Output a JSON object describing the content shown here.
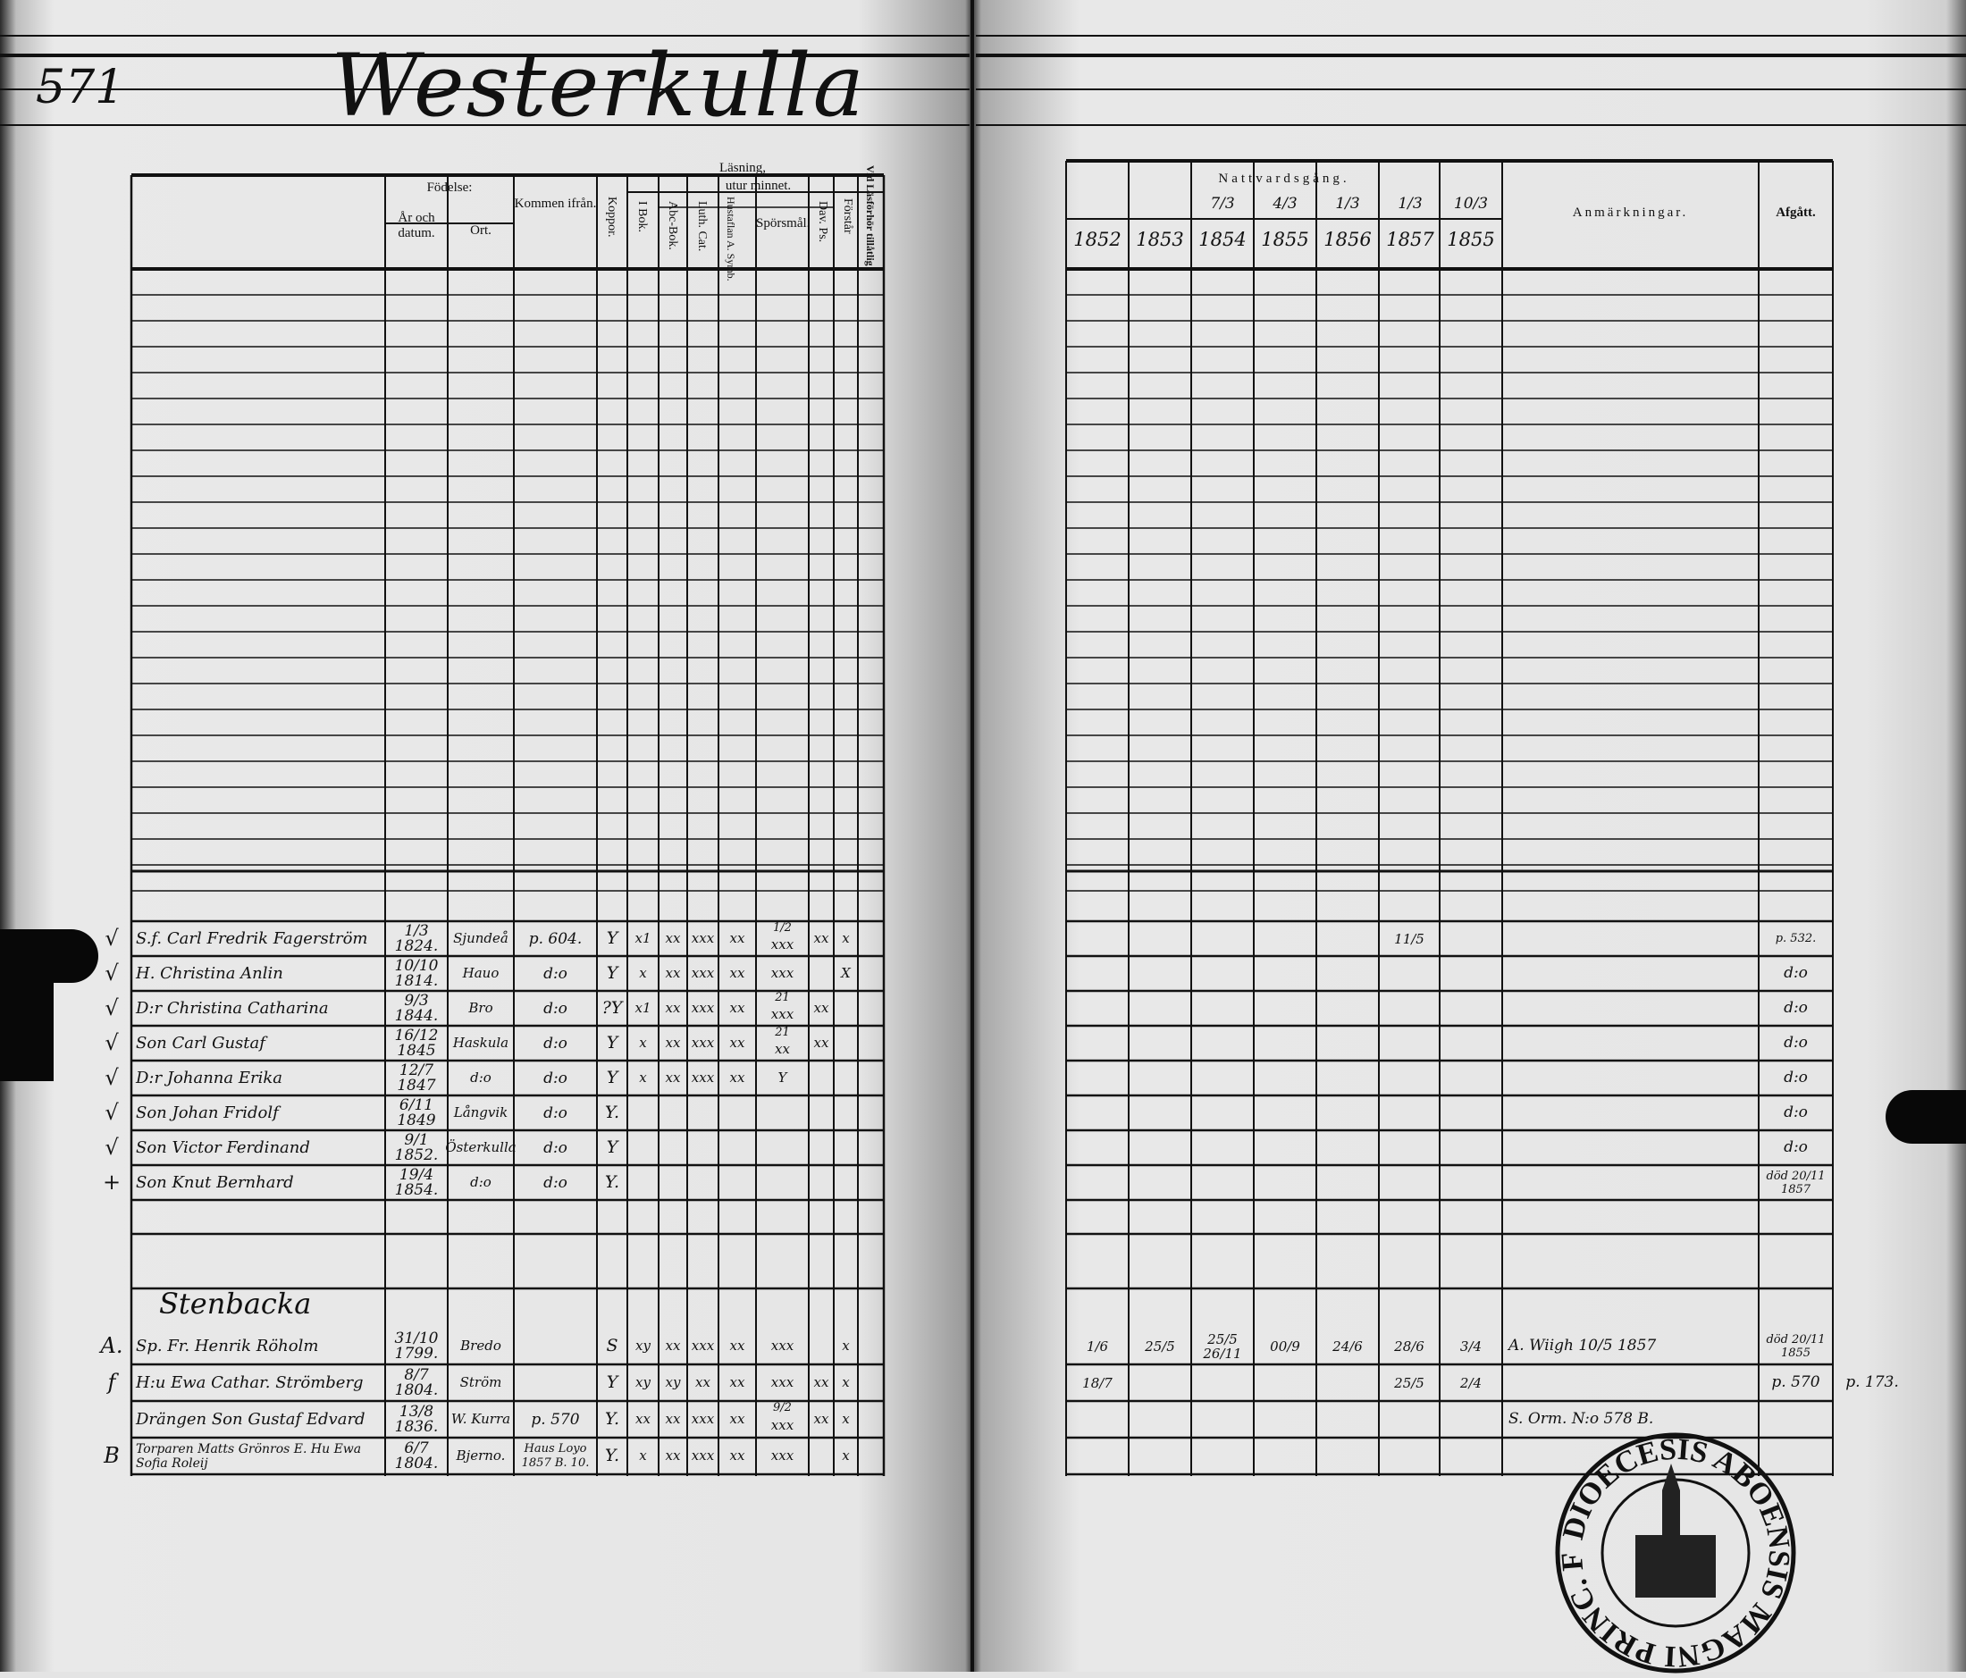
{
  "page": {
    "page_number": "571",
    "village_title": "Westerkulla",
    "section_title": "Stenbacka"
  },
  "left_header": {
    "fodelse": "Födelse:",
    "ar_och_datum": "År och datum.",
    "ort": "Ort.",
    "kommen_ifran": "Kommen ifrån.",
    "kopper": "Koppor.",
    "lasning": "Läsning,",
    "utur_minnet": "utur minnet.",
    "i_bok": "I Bok.",
    "abc_bok": "Abc-Bok.",
    "luth_cat": "Luth. Cat.",
    "hustafla_symb": "Hustaflan A. Symb.",
    "sporsmal": "Spörsmål.",
    "dav_ps": "Dav. Ps.",
    "forstar": "Förstår",
    "vid_lasforhor": "Vid Läsförhör tillåtlig"
  },
  "right_header": {
    "nattvardsgang": "Nattvardsgång.",
    "sub_dates": [
      "",
      "",
      "7/3",
      "4/3",
      "1/3",
      "1/3",
      "10/3"
    ],
    "years": [
      "1852",
      "1853",
      "1854",
      "1855",
      "1856",
      "1857",
      "1855"
    ],
    "anmarkningar": "Anmärkningar.",
    "afgatt": "Afgått."
  },
  "households": [
    {
      "members": [
        {
          "mark": "√",
          "name": "S.f. Carl Fredrik Fagerström",
          "born": "1/3 1824.",
          "place": "Sjundeå",
          "from": "p. 604.",
          "kopper": "Y",
          "reading": [
            "x1",
            "xx",
            "xxx",
            "xx",
            "xxx",
            "xx",
            "x"
          ],
          "note_above": "1/2",
          "communion": [
            "",
            "",
            "",
            "",
            "",
            "11/5",
            ""
          ],
          "remark": "",
          "afgatt": "p. 532."
        },
        {
          "mark": "√",
          "name": "H. Christina Anlin",
          "born": "10/10 1814.",
          "place": "Hauo",
          "from": "d:o",
          "kopper": "Y",
          "reading": [
            "x",
            "xx",
            "xxx",
            "xx",
            "xxx",
            "",
            "X"
          ],
          "note_above": "",
          "communion": [
            "",
            "",
            "",
            "",
            "",
            "",
            ""
          ],
          "remark": "",
          "afgatt": "d:o"
        },
        {
          "mark": "√",
          "name": "D:r Christina Catharina",
          "born": "9/3 1844.",
          "place": "Bro",
          "from": "d:o",
          "kopper": "?Y",
          "reading": [
            "x1",
            "xx",
            "xxx",
            "xx",
            "xxx",
            "xx",
            ""
          ],
          "note_above": "21",
          "communion": [
            "",
            "",
            "",
            "",
            "",
            "",
            ""
          ],
          "remark": "",
          "afgatt": "d:o"
        },
        {
          "mark": "√",
          "name": "Son Carl Gustaf",
          "born": "16/12 1845",
          "place": "Haskula",
          "from": "d:o",
          "kopper": "Y",
          "reading": [
            "x",
            "xx",
            "xxx",
            "xx",
            "xx",
            "xx",
            ""
          ],
          "note_above": "21",
          "communion": [
            "",
            "",
            "",
            "",
            "",
            "",
            ""
          ],
          "remark": "",
          "afgatt": "d:o"
        },
        {
          "mark": "√",
          "name": "D:r Johanna Erika",
          "born": "12/7 1847",
          "place": "d:o",
          "from": "d:o",
          "kopper": "Y",
          "reading": [
            "x",
            "xx",
            "xxx",
            "xx",
            "Y",
            "",
            ""
          ],
          "note_above": "",
          "communion": [
            "",
            "",
            "",
            "",
            "",
            "",
            ""
          ],
          "remark": "",
          "afgatt": "d:o"
        },
        {
          "mark": "√",
          "name": "Son Johan Fridolf",
          "born": "6/11 1849",
          "place": "Långvik",
          "from": "d:o",
          "kopper": "Y.",
          "reading": [
            "",
            "",
            "",
            "",
            "",
            "",
            ""
          ],
          "note_above": "",
          "communion": [
            "",
            "",
            "",
            "",
            "",
            "",
            ""
          ],
          "remark": "",
          "afgatt": "d:o"
        },
        {
          "mark": "√",
          "name": "Son Victor Ferdinand",
          "born": "9/1 1852.",
          "place": "Österkulla",
          "from": "d:o",
          "kopper": "Y",
          "reading": [
            "",
            "",
            "",
            "",
            "",
            "",
            ""
          ],
          "note_above": "",
          "communion": [
            "",
            "",
            "",
            "",
            "",
            "",
            ""
          ],
          "remark": "",
          "afgatt": "d:o"
        },
        {
          "mark": "+",
          "name": "Son Knut Bernhard",
          "born": "19/4 1854.",
          "place": "d:o",
          "from": "d:o",
          "kopper": "Y.",
          "reading": [
            "",
            "",
            "",
            "",
            "",
            "",
            ""
          ],
          "note_above": "",
          "communion": [
            "",
            "",
            "",
            "",
            "",
            "",
            ""
          ],
          "remark": "",
          "afgatt": "död 20/11 1857"
        }
      ]
    },
    {
      "members": [
        {
          "mark": "A.",
          "name": "Sp. Fr. Henrik Röholm",
          "born": "31/10 1799.",
          "place": "Bredo",
          "from": "",
          "kopper": "S",
          "reading": [
            "xy",
            "xx",
            "xxx",
            "xx",
            "xxx",
            "",
            "x"
          ],
          "note_above": "",
          "communion": [
            "1/6",
            "25/5",
            "25/5 26/11",
            "00/9",
            "24/6",
            "28/6",
            "3/4"
          ],
          "remark": "A. Wiigh 10/5 1857",
          "afgatt": "död 20/11 1855"
        },
        {
          "mark": "f",
          "name": "H:u Ewa Cathar. Strömberg",
          "born": "8/7 1804.",
          "place": "Ström",
          "from": "",
          "kopper": "Y",
          "reading": [
            "xy",
            "xy",
            "xx",
            "xx",
            "xxx",
            "xx",
            "x"
          ],
          "note_above": "",
          "communion": [
            "18/7",
            "",
            "",
            "",
            "",
            "25/5",
            "2/4"
          ],
          "remark": "",
          "afgatt": "p. 570",
          "extra": "p. 173."
        },
        {
          "mark": "",
          "name": "Drängen Son Gustaf Edvard",
          "born": "13/8 1836.",
          "place": "W. Kurra",
          "from": "p. 570",
          "kopper": "Y.",
          "reading": [
            "xx",
            "xx",
            "xxx",
            "xx",
            "xxx",
            "xx",
            "x"
          ],
          "note_above": "9/2",
          "communion": [
            "",
            "",
            "",
            "",
            "",
            "",
            ""
          ],
          "remark": "S. Orm. N:o 578 B.",
          "afgatt": ""
        },
        {
          "mark": "B",
          "name": "Torparen Matts Grönros E. Hu Ewa Sofia Roleij",
          "born": "6/7 1804.",
          "place": "Bjerno.",
          "from": "Haus Loyo 1857 B. 10.",
          "kopper": "Y.",
          "reading": [
            "x",
            "xx",
            "xxx",
            "xx",
            "xxx",
            "",
            "x"
          ],
          "note_above": "",
          "communion": [
            "",
            "",
            "",
            "",
            "",
            "",
            ""
          ],
          "remark": "",
          "afgatt": ""
        }
      ]
    }
  ],
  "stamp": {
    "text": "DIOECESIS ABOENSIS MAGNI PRINC. FINL."
  }
}
